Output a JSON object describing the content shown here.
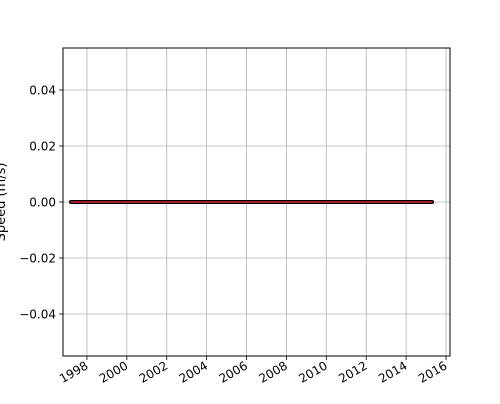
{
  "chart_data": {
    "type": "line",
    "title": "",
    "xlabel": "",
    "ylabel": "Speed (m/s)",
    "x_tick_labels": [
      "1998",
      "2000",
      "2002",
      "2004",
      "2006",
      "2008",
      "2010",
      "2012",
      "2014",
      "2016"
    ],
    "x_ticks": [
      1998,
      2000,
      2002,
      2004,
      2006,
      2008,
      2010,
      2012,
      2014,
      2016
    ],
    "y_tick_labels": [
      "0.04",
      "0.02",
      "0.00",
      "−0.02",
      "−0.04"
    ],
    "y_ticks": [
      0.04,
      0.02,
      0.0,
      -0.02,
      -0.04
    ],
    "xlim": [
      1996.8,
      2016.2
    ],
    "ylim": [
      -0.055,
      0.055
    ],
    "grid": true,
    "series": [
      {
        "color": "#000000",
        "linewidth": 4,
        "x": [
          1997.2,
          2015.3
        ],
        "y": [
          0.0,
          0.0
        ]
      },
      {
        "color": "#d62728",
        "linewidth": 1.5,
        "x": [
          1997.2,
          2015.3
        ],
        "y": [
          0.0,
          0.0
        ]
      }
    ]
  }
}
